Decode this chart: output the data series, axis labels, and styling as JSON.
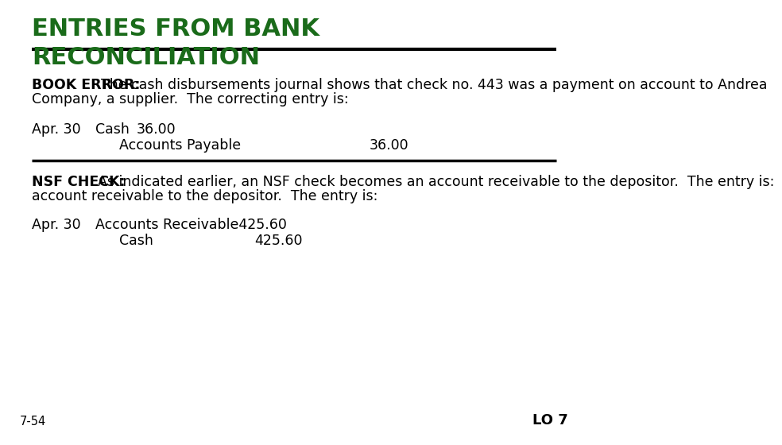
{
  "title_line1": "ENTRIES FROM BANK",
  "title_line2": "RECONCILIATION",
  "title_color": "#1a6b1a",
  "bg_color": "#ffffff",
  "text_color": "#000000",
  "body_font_size": 12.5,
  "title_font_size": 22,
  "section1_bold": "BOOK ERROR:",
  "section1_rest": " The cash disbursements journal shows that check no. 443 was a payment on account to Andrea\nCompany, a supplier.  The correcting entry is:",
  "entry1_date": "Apr. 30",
  "entry1_debit_acct": "Cash",
  "entry1_debit_amt": "36.00",
  "entry1_credit_acct": "Accounts Payable",
  "entry1_credit_amt": "36.00",
  "section2_bold": "NSF CHECK:",
  "section2_rest": " As indicated earlier, an NSF check becomes an account receivable to the depositor.  The entry is:",
  "entry2_date": "Apr. 30",
  "entry2_debit_acct": "Accounts Receivable",
  "entry2_debit_amt": "425.60",
  "entry2_credit_acct": "Cash",
  "entry2_credit_amt": "425.60",
  "footer_left": "7-54",
  "footer_right": "LO 7",
  "line_color": "#000000"
}
